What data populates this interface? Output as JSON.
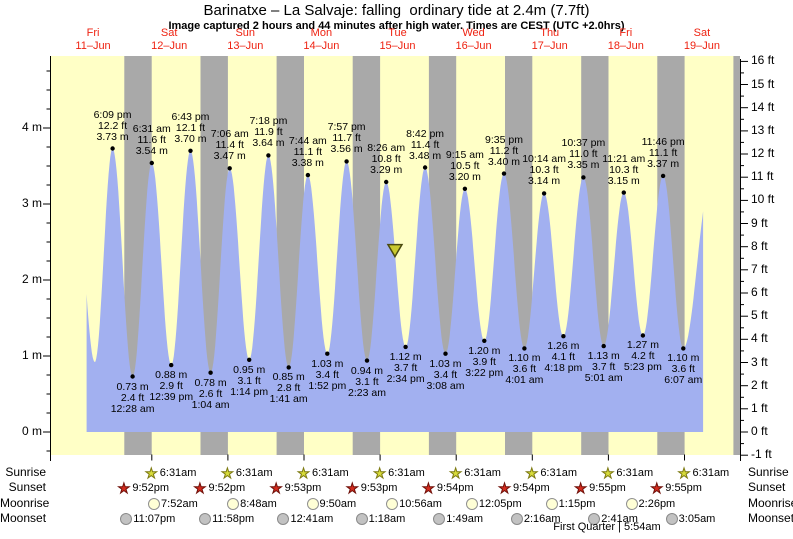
{
  "title": "Barinatxe – La Salvaje: falling  ordinary tide at 2.4m (7.7ft)",
  "subtitle": "Image captured 2 hours and 44 minutes after high water. Times are CEST (UTC +2.0hrs)",
  "chart_data": {
    "type": "area",
    "unit_left": "m",
    "unit_right": "ft",
    "categories": [
      {
        "name": "Fri",
        "date": "11–Jun"
      },
      {
        "name": "Sat",
        "date": "12–Jun"
      },
      {
        "name": "Sun",
        "date": "13–Jun"
      },
      {
        "name": "Mon",
        "date": "14–Jun"
      },
      {
        "name": "Tue",
        "date": "15–Jun"
      },
      {
        "name": "Wed",
        "date": "16–Jun"
      },
      {
        "name": "Thu",
        "date": "17–Jun"
      },
      {
        "name": "Fri",
        "date": "18–Jun"
      },
      {
        "name": "Sat",
        "date": "19–Jun"
      }
    ],
    "yticks_m": [
      4,
      3,
      2,
      1,
      0
    ],
    "yticks_ft": [
      16,
      15,
      14,
      13,
      12,
      11,
      10,
      9,
      8,
      7,
      6,
      5,
      4,
      3,
      2,
      1,
      0,
      -1
    ],
    "ylim_m": [
      -0.35,
      4.95
    ],
    "tide_events": [
      {
        "day": 0,
        "type": "high",
        "time": "6:09 pm",
        "ft": "12.2 ft",
        "m": "3.73 m"
      },
      {
        "day": 1,
        "type": "low",
        "time": "12:28 am",
        "ft": "2.4 ft",
        "m": "0.73 m"
      },
      {
        "day": 1,
        "type": "high",
        "time": "6:31 am",
        "ft": "11.6 ft",
        "m": "3.54 m"
      },
      {
        "day": 1,
        "type": "low",
        "time": "12:39 pm",
        "ft": "2.9 ft",
        "m": "0.88 m"
      },
      {
        "day": 1,
        "type": "high",
        "time": "6:43 pm",
        "ft": "12.1 ft",
        "m": "3.70 m"
      },
      {
        "day": 2,
        "type": "low",
        "time": "1:04 am",
        "ft": "2.6 ft",
        "m": "0.78 m"
      },
      {
        "day": 2,
        "type": "high",
        "time": "7:06 am",
        "ft": "11.4 ft",
        "m": "3.47 m"
      },
      {
        "day": 2,
        "type": "low",
        "time": "1:14 pm",
        "ft": "3.1 ft",
        "m": "0.95 m"
      },
      {
        "day": 2,
        "type": "high",
        "time": "7:18 pm",
        "ft": "11.9 ft",
        "m": "3.64 m"
      },
      {
        "day": 3,
        "type": "low",
        "time": "1:41 am",
        "ft": "2.8 ft",
        "m": "0.85 m"
      },
      {
        "day": 3,
        "type": "high",
        "time": "7:44 am",
        "ft": "11.1 ft",
        "m": "3.38 m"
      },
      {
        "day": 3,
        "type": "low",
        "time": "1:52 pm",
        "ft": "3.4 ft",
        "m": "1.03 m"
      },
      {
        "day": 3,
        "type": "high",
        "time": "7:57 pm",
        "ft": "11.7 ft",
        "m": "3.56 m"
      },
      {
        "day": 4,
        "type": "low",
        "time": "2:23 am",
        "ft": "3.1 ft",
        "m": "0.94 m"
      },
      {
        "day": 4,
        "type": "high",
        "time": "8:26 am",
        "ft": "10.8 ft",
        "m": "3.29 m"
      },
      {
        "day": 4,
        "type": "low",
        "time": "2:34 pm",
        "ft": "3.7 ft",
        "m": "1.12 m"
      },
      {
        "day": 4,
        "type": "high",
        "time": "8:42 pm",
        "ft": "11.4 ft",
        "m": "3.48 m"
      },
      {
        "day": 5,
        "type": "low",
        "time": "3:08 am",
        "ft": "3.4 ft",
        "m": "1.03 m"
      },
      {
        "day": 5,
        "type": "high",
        "time": "9:15 am",
        "ft": "10.5 ft",
        "m": "3.20 m"
      },
      {
        "day": 5,
        "type": "low",
        "time": "3:22 pm",
        "ft": "3.9 ft",
        "m": "1.20 m"
      },
      {
        "day": 5,
        "type": "high",
        "time": "9:35 pm",
        "ft": "11.2 ft",
        "m": "3.40 m"
      },
      {
        "day": 6,
        "type": "low",
        "time": "4:01 am",
        "ft": "3.6 ft",
        "m": "1.10 m"
      },
      {
        "day": 6,
        "type": "high",
        "time": "10:14 am",
        "ft": "10.3 ft",
        "m": "3.14 m"
      },
      {
        "day": 6,
        "type": "low",
        "time": "4:18 pm",
        "ft": "4.1 ft",
        "m": "1.26 m"
      },
      {
        "day": 6,
        "type": "high",
        "time": "10:37 pm",
        "ft": "11.0 ft",
        "m": "3.35 m"
      },
      {
        "day": 7,
        "type": "low",
        "time": "5:01 am",
        "ft": "3.7 ft",
        "m": "1.13 m"
      },
      {
        "day": 7,
        "type": "high",
        "time": "11:21 am",
        "ft": "10.3 ft",
        "m": "3.15 m"
      },
      {
        "day": 7,
        "type": "low",
        "time": "5:23 pm",
        "ft": "4.2 ft",
        "m": "1.27 m"
      },
      {
        "day": 7,
        "type": "high",
        "time": "11:46 pm",
        "ft": "11.1 ft",
        "m": "3.37 m"
      },
      {
        "day": 8,
        "type": "low",
        "time": "6:07 am",
        "ft": "3.6 ft",
        "m": "1.10 m"
      }
    ],
    "offchart_anchors": [
      {
        "day": 0,
        "hour": 5.93,
        "height_m": 3.6
      },
      {
        "day": 0,
        "hour": 12.55,
        "height_m": 0.92
      },
      {
        "day": 8,
        "hour": 14.8,
        "height_m": 3.3
      }
    ],
    "current_marker": {
      "day": 4,
      "hour": 11.2,
      "height_m": 2.4
    },
    "colors": {
      "day_bg": "#ffffc6",
      "night_bg": "#a9a9a9",
      "tide_fill": "#a2b0f0",
      "day_label": "#ee2211",
      "axis": "#000000"
    }
  },
  "astro": {
    "row_labels": [
      "Sunrise",
      "Sunset",
      "Moonrise",
      "Moonset"
    ],
    "sunrise": [
      {
        "day": 1,
        "time": "6:31am"
      },
      {
        "day": 2,
        "time": "6:31am"
      },
      {
        "day": 3,
        "time": "6:31am"
      },
      {
        "day": 4,
        "time": "6:31am"
      },
      {
        "day": 5,
        "time": "6:31am"
      },
      {
        "day": 6,
        "time": "6:31am"
      },
      {
        "day": 7,
        "time": "6:31am"
      },
      {
        "day": 8,
        "time": "6:31am"
      }
    ],
    "sunset": [
      {
        "day": 0,
        "time": "9:52pm"
      },
      {
        "day": 1,
        "time": "9:52pm"
      },
      {
        "day": 2,
        "time": "9:53pm"
      },
      {
        "day": 3,
        "time": "9:53pm"
      },
      {
        "day": 4,
        "time": "9:54pm"
      },
      {
        "day": 5,
        "time": "9:54pm"
      },
      {
        "day": 6,
        "time": "9:55pm"
      },
      {
        "day": 7,
        "time": "9:55pm"
      }
    ],
    "moonrise": [
      {
        "day": 1,
        "time": "7:52am"
      },
      {
        "day": 2,
        "time": "8:48am"
      },
      {
        "day": 3,
        "time": "9:50am"
      },
      {
        "day": 4,
        "time": "10:56am"
      },
      {
        "day": 5,
        "time": "12:05pm"
      },
      {
        "day": 6,
        "time": "1:15pm"
      },
      {
        "day": 7,
        "time": "2:26pm"
      }
    ],
    "moonset": [
      {
        "day": 0,
        "time": "11:07pm"
      },
      {
        "day": 1,
        "time": "11:58pm"
      },
      {
        "day": 3,
        "time": "12:41am"
      },
      {
        "day": 4,
        "time": "1:18am"
      },
      {
        "day": 5,
        "time": "1:49am"
      },
      {
        "day": 6,
        "time": "2:16am"
      },
      {
        "day": 7,
        "time": "2:41am"
      },
      {
        "day": 8,
        "time": "3:05am"
      }
    ],
    "moon_phase": "First Quarter | 5:54am"
  }
}
